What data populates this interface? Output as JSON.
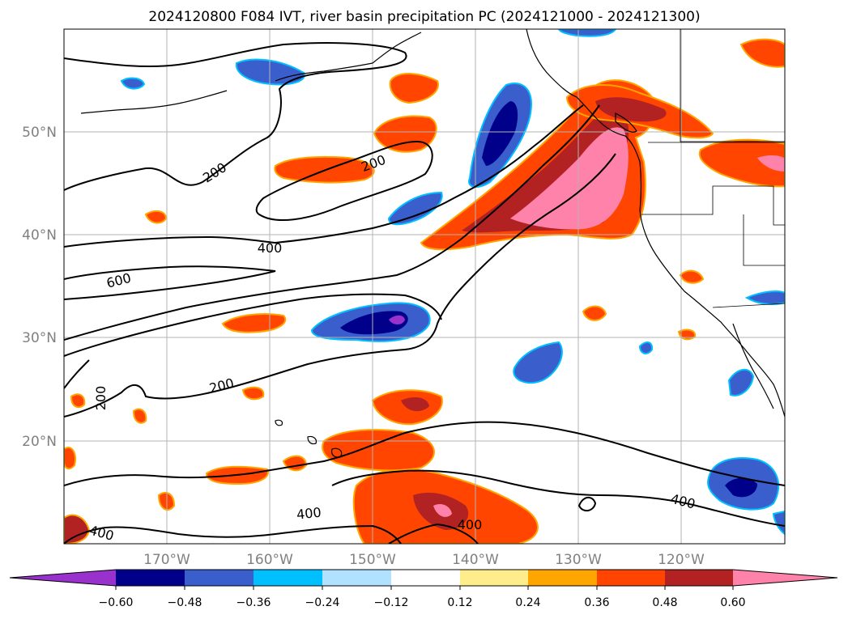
{
  "title": "2024120800 F084 IVT, river basin precipitation PC (2024121000 - 2024121300)",
  "map": {
    "lat_labels": [
      "50°N",
      "40°N",
      "30°N",
      "20°N"
    ],
    "lon_labels": [
      "170°W",
      "160°W",
      "150°W",
      "140°W",
      "130°W",
      "120°W"
    ],
    "contour_labels": [
      "200",
      "200",
      "400",
      "600",
      "200",
      "200",
      "400",
      "400",
      "400",
      "400"
    ]
  },
  "colorbar": {
    "ticks": [
      "−0.60",
      "−0.48",
      "−0.36",
      "−0.24",
      "−0.12",
      "0.12",
      "0.24",
      "0.36",
      "0.48",
      "0.60"
    ],
    "colors": [
      "#9932cc",
      "#00008b",
      "#3a5fcd",
      "#00bfff",
      "#b0e2ff",
      "#ffffff",
      "#ffec8b",
      "#ffa500",
      "#ff4500",
      "#b22222",
      "#ff82ab"
    ]
  }
}
